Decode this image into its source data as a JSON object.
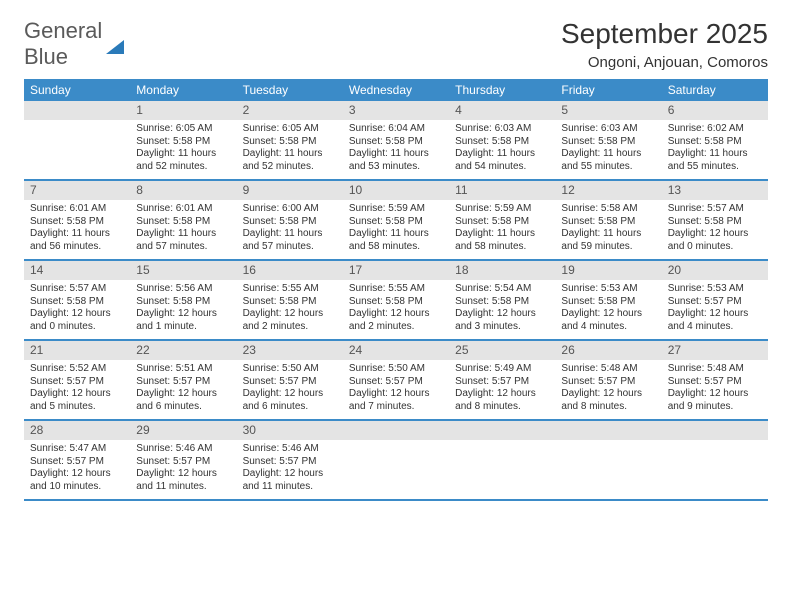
{
  "logo": {
    "word1": "General",
    "word2": "Blue"
  },
  "title": "September 2025",
  "location": "Ongoni, Anjouan, Comoros",
  "header_bg": "#3b8bc8",
  "header_fg": "#ffffff",
  "daynum_bg": "#e4e4e4",
  "week_border": "#3b8bc8",
  "text_color": "#333333",
  "weekdays": [
    "Sunday",
    "Monday",
    "Tuesday",
    "Wednesday",
    "Thursday",
    "Friday",
    "Saturday"
  ],
  "weeks": [
    [
      null,
      {
        "n": "1",
        "sr": "Sunrise: 6:05 AM",
        "ss": "Sunset: 5:58 PM",
        "dl1": "Daylight: 11 hours",
        "dl2": "and 52 minutes."
      },
      {
        "n": "2",
        "sr": "Sunrise: 6:05 AM",
        "ss": "Sunset: 5:58 PM",
        "dl1": "Daylight: 11 hours",
        "dl2": "and 52 minutes."
      },
      {
        "n": "3",
        "sr": "Sunrise: 6:04 AM",
        "ss": "Sunset: 5:58 PM",
        "dl1": "Daylight: 11 hours",
        "dl2": "and 53 minutes."
      },
      {
        "n": "4",
        "sr": "Sunrise: 6:03 AM",
        "ss": "Sunset: 5:58 PM",
        "dl1": "Daylight: 11 hours",
        "dl2": "and 54 minutes."
      },
      {
        "n": "5",
        "sr": "Sunrise: 6:03 AM",
        "ss": "Sunset: 5:58 PM",
        "dl1": "Daylight: 11 hours",
        "dl2": "and 55 minutes."
      },
      {
        "n": "6",
        "sr": "Sunrise: 6:02 AM",
        "ss": "Sunset: 5:58 PM",
        "dl1": "Daylight: 11 hours",
        "dl2": "and 55 minutes."
      }
    ],
    [
      {
        "n": "7",
        "sr": "Sunrise: 6:01 AM",
        "ss": "Sunset: 5:58 PM",
        "dl1": "Daylight: 11 hours",
        "dl2": "and 56 minutes."
      },
      {
        "n": "8",
        "sr": "Sunrise: 6:01 AM",
        "ss": "Sunset: 5:58 PM",
        "dl1": "Daylight: 11 hours",
        "dl2": "and 57 minutes."
      },
      {
        "n": "9",
        "sr": "Sunrise: 6:00 AM",
        "ss": "Sunset: 5:58 PM",
        "dl1": "Daylight: 11 hours",
        "dl2": "and 57 minutes."
      },
      {
        "n": "10",
        "sr": "Sunrise: 5:59 AM",
        "ss": "Sunset: 5:58 PM",
        "dl1": "Daylight: 11 hours",
        "dl2": "and 58 minutes."
      },
      {
        "n": "11",
        "sr": "Sunrise: 5:59 AM",
        "ss": "Sunset: 5:58 PM",
        "dl1": "Daylight: 11 hours",
        "dl2": "and 58 minutes."
      },
      {
        "n": "12",
        "sr": "Sunrise: 5:58 AM",
        "ss": "Sunset: 5:58 PM",
        "dl1": "Daylight: 11 hours",
        "dl2": "and 59 minutes."
      },
      {
        "n": "13",
        "sr": "Sunrise: 5:57 AM",
        "ss": "Sunset: 5:58 PM",
        "dl1": "Daylight: 12 hours",
        "dl2": "and 0 minutes."
      }
    ],
    [
      {
        "n": "14",
        "sr": "Sunrise: 5:57 AM",
        "ss": "Sunset: 5:58 PM",
        "dl1": "Daylight: 12 hours",
        "dl2": "and 0 minutes."
      },
      {
        "n": "15",
        "sr": "Sunrise: 5:56 AM",
        "ss": "Sunset: 5:58 PM",
        "dl1": "Daylight: 12 hours",
        "dl2": "and 1 minute."
      },
      {
        "n": "16",
        "sr": "Sunrise: 5:55 AM",
        "ss": "Sunset: 5:58 PM",
        "dl1": "Daylight: 12 hours",
        "dl2": "and 2 minutes."
      },
      {
        "n": "17",
        "sr": "Sunrise: 5:55 AM",
        "ss": "Sunset: 5:58 PM",
        "dl1": "Daylight: 12 hours",
        "dl2": "and 2 minutes."
      },
      {
        "n": "18",
        "sr": "Sunrise: 5:54 AM",
        "ss": "Sunset: 5:58 PM",
        "dl1": "Daylight: 12 hours",
        "dl2": "and 3 minutes."
      },
      {
        "n": "19",
        "sr": "Sunrise: 5:53 AM",
        "ss": "Sunset: 5:58 PM",
        "dl1": "Daylight: 12 hours",
        "dl2": "and 4 minutes."
      },
      {
        "n": "20",
        "sr": "Sunrise: 5:53 AM",
        "ss": "Sunset: 5:57 PM",
        "dl1": "Daylight: 12 hours",
        "dl2": "and 4 minutes."
      }
    ],
    [
      {
        "n": "21",
        "sr": "Sunrise: 5:52 AM",
        "ss": "Sunset: 5:57 PM",
        "dl1": "Daylight: 12 hours",
        "dl2": "and 5 minutes."
      },
      {
        "n": "22",
        "sr": "Sunrise: 5:51 AM",
        "ss": "Sunset: 5:57 PM",
        "dl1": "Daylight: 12 hours",
        "dl2": "and 6 minutes."
      },
      {
        "n": "23",
        "sr": "Sunrise: 5:50 AM",
        "ss": "Sunset: 5:57 PM",
        "dl1": "Daylight: 12 hours",
        "dl2": "and 6 minutes."
      },
      {
        "n": "24",
        "sr": "Sunrise: 5:50 AM",
        "ss": "Sunset: 5:57 PM",
        "dl1": "Daylight: 12 hours",
        "dl2": "and 7 minutes."
      },
      {
        "n": "25",
        "sr": "Sunrise: 5:49 AM",
        "ss": "Sunset: 5:57 PM",
        "dl1": "Daylight: 12 hours",
        "dl2": "and 8 minutes."
      },
      {
        "n": "26",
        "sr": "Sunrise: 5:48 AM",
        "ss": "Sunset: 5:57 PM",
        "dl1": "Daylight: 12 hours",
        "dl2": "and 8 minutes."
      },
      {
        "n": "27",
        "sr": "Sunrise: 5:48 AM",
        "ss": "Sunset: 5:57 PM",
        "dl1": "Daylight: 12 hours",
        "dl2": "and 9 minutes."
      }
    ],
    [
      {
        "n": "28",
        "sr": "Sunrise: 5:47 AM",
        "ss": "Sunset: 5:57 PM",
        "dl1": "Daylight: 12 hours",
        "dl2": "and 10 minutes."
      },
      {
        "n": "29",
        "sr": "Sunrise: 5:46 AM",
        "ss": "Sunset: 5:57 PM",
        "dl1": "Daylight: 12 hours",
        "dl2": "and 11 minutes."
      },
      {
        "n": "30",
        "sr": "Sunrise: 5:46 AM",
        "ss": "Sunset: 5:57 PM",
        "dl1": "Daylight: 12 hours",
        "dl2": "and 11 minutes."
      },
      null,
      null,
      null,
      null
    ]
  ]
}
